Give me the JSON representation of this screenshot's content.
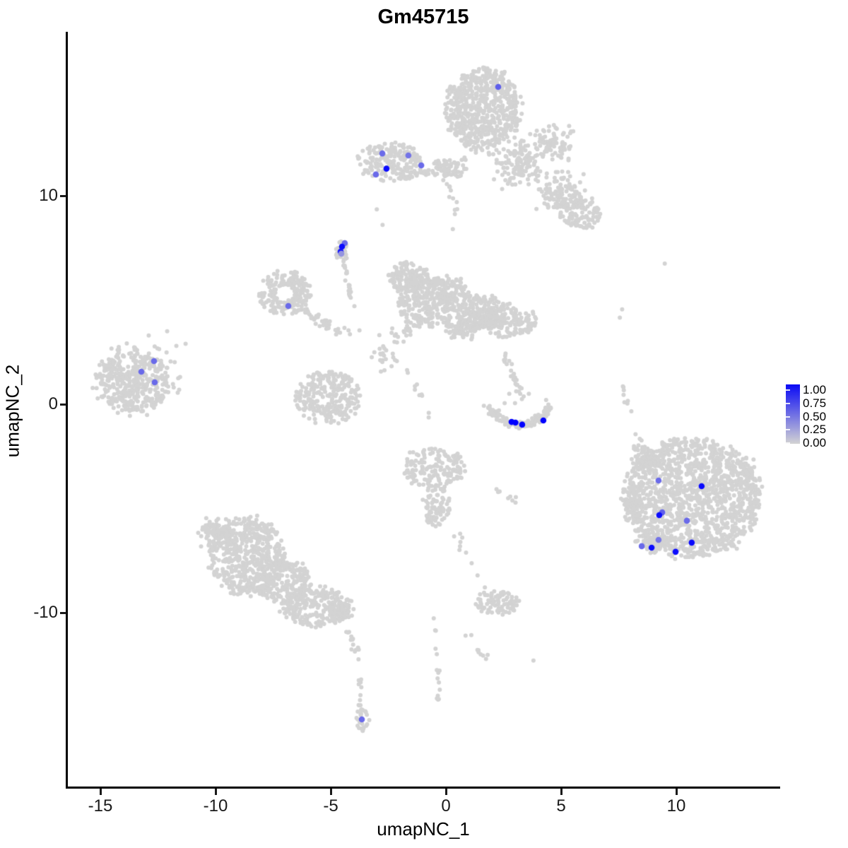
{
  "chart_data": {
    "type": "scatter",
    "title": "Gm45715",
    "xlabel": "umapNC_1",
    "ylabel": "umapNC_2",
    "xlim": [
      -16.4,
      14.4
    ],
    "ylim": [
      -18.4,
      17.9
    ],
    "grid": false,
    "x_ticks": [
      {
        "v": -15,
        "label": "-15"
      },
      {
        "v": -10,
        "label": "-10"
      },
      {
        "v": -5,
        "label": "-5"
      },
      {
        "v": 0,
        "label": "0"
      },
      {
        "v": 5,
        "label": "5"
      },
      {
        "v": 10,
        "label": "10"
      }
    ],
    "y_ticks": [
      {
        "v": 10,
        "label": "10"
      },
      {
        "v": 0,
        "label": "0"
      },
      {
        "v": -10,
        "label": "-10"
      }
    ],
    "legend": {
      "position": "right",
      "labels": [
        "1.00",
        "0.75",
        "0.50",
        "0.25",
        "0.00"
      ],
      "top_color": "#0a0af5",
      "bottom_color": "#d3d3d3"
    },
    "base_point_color": "#d3d3d3",
    "high_point_color": "#0000ff",
    "clusters": [
      {
        "type": "blob",
        "d": "u",
        "x": 1.6,
        "y": 14.1,
        "rx": 1.6,
        "ry": 2.0,
        "n": 650
      },
      {
        "type": "blob",
        "d": "t",
        "x": 0.1,
        "y": 11.4,
        "rx": 0.9,
        "ry": 0.45,
        "n": 45
      },
      {
        "type": "blob",
        "d": "t",
        "x": 3.2,
        "y": 11.6,
        "rx": 1.3,
        "ry": 1.3,
        "n": 130
      },
      {
        "type": "blob",
        "d": "t",
        "x": 4.6,
        "y": 12.5,
        "rx": 1.1,
        "ry": 1.1,
        "n": 80
      },
      {
        "type": "blob",
        "d": "t",
        "x": 5.0,
        "y": 10.1,
        "rx": 1.3,
        "ry": 1.2,
        "n": 120
      },
      {
        "type": "blob",
        "d": "u",
        "x": 5.8,
        "y": 9.2,
        "rx": 0.9,
        "ry": 0.85,
        "n": 110
      },
      {
        "type": "trail",
        "x1": 0.0,
        "y1": 10.9,
        "x2": 0.6,
        "y2": 8.6,
        "n": 12,
        "j": 0.25
      },
      {
        "type": "blob",
        "d": "u",
        "x": -2.4,
        "y": 11.6,
        "rx": 1.45,
        "ry": 0.9,
        "n": 200
      },
      {
        "type": "trail",
        "x1": -1.2,
        "y1": 11.15,
        "x2": 0.7,
        "y2": 11.05,
        "n": 35,
        "j": 0.22
      },
      {
        "type": "blob",
        "d": "u",
        "x": -4.5,
        "y": 7.35,
        "rx": 0.28,
        "ry": 0.55,
        "n": 26
      },
      {
        "type": "trail",
        "x1": -4.05,
        "y1": 4.65,
        "x2": -4.45,
        "y2": 7.0,
        "n": 22,
        "j": 0.12
      },
      {
        "type": "ring",
        "x": -7.0,
        "y": 5.35,
        "r0": 0.4,
        "r1": 1.15,
        "sy": 0.95,
        "n": 210
      },
      {
        "type": "trail",
        "x1": -6.25,
        "y1": 4.6,
        "x2": -4.95,
        "y2": 3.65,
        "n": 30,
        "j": 0.22
      },
      {
        "type": "blob",
        "d": "u",
        "x": -1.6,
        "y": 6.1,
        "rx": 0.85,
        "ry": 0.75,
        "n": 130
      },
      {
        "type": "blob",
        "d": "u",
        "x": -0.9,
        "y": 4.9,
        "rx": 1.25,
        "ry": 1.25,
        "n": 270
      },
      {
        "type": "blob",
        "d": "u",
        "x": 0.2,
        "y": 5.3,
        "rx": 0.8,
        "ry": 0.8,
        "n": 110
      },
      {
        "type": "blob",
        "d": "u",
        "x": 1.5,
        "y": 4.4,
        "rx": 1.05,
        "ry": 0.85,
        "n": 190
      },
      {
        "type": "blob",
        "d": "u",
        "x": 2.5,
        "y": 4.0,
        "rx": 0.7,
        "ry": 0.85,
        "n": 100
      },
      {
        "type": "blob",
        "d": "t",
        "x": 0.6,
        "y": 3.6,
        "rx": 0.9,
        "ry": 0.5,
        "n": 70
      },
      {
        "type": "blob",
        "d": "t",
        "x": 3.6,
        "y": 3.9,
        "rx": 0.5,
        "ry": 0.6,
        "n": 35
      },
      {
        "type": "trail",
        "x1": -5.9,
        "y1": 3.9,
        "x2": -2.9,
        "y2": 3.3,
        "n": 16,
        "j": 0.35
      },
      {
        "type": "blob",
        "d": "t",
        "x": -2.7,
        "y": 2.2,
        "rx": 0.6,
        "ry": 0.7,
        "n": 22
      },
      {
        "type": "blob",
        "d": "t",
        "x": -1.9,
        "y": 3.3,
        "rx": 0.55,
        "ry": 0.55,
        "n": 18
      },
      {
        "type": "trail",
        "x1": -1.6,
        "y1": 1.6,
        "x2": -0.8,
        "y2": -0.6,
        "n": 10,
        "j": 0.3
      },
      {
        "type": "trail",
        "x1": 2.5,
        "y1": 2.4,
        "x2": 3.3,
        "y2": 0.4,
        "n": 26,
        "j": 0.18
      },
      {
        "type": "blob",
        "d": "u",
        "x": -13.5,
        "y": 1.1,
        "rx": 1.5,
        "ry": 1.45,
        "n": 380
      },
      {
        "type": "ring",
        "x": -13.4,
        "y": 1.2,
        "r0": 1.5,
        "r1": 2.0,
        "sy": 0.9,
        "n": 50
      },
      {
        "type": "ring",
        "x": -5.1,
        "y": 0.3,
        "r0": 0.5,
        "r1": 1.45,
        "sy": 0.9,
        "n": 230
      },
      {
        "type": "blob",
        "d": "t",
        "x": -5.1,
        "y": 0.3,
        "rx": 1.0,
        "ry": 0.9,
        "n": 40
      },
      {
        "type": "arc",
        "p0": [
          1.75,
          -0.1
        ],
        "p1": [
          3.2,
          -1.9
        ],
        "p2": [
          4.55,
          -0.15
        ],
        "n": 150,
        "j": 0.2
      },
      {
        "type": "blob",
        "d": "u",
        "x": -0.5,
        "y": -3.1,
        "rx": 1.35,
        "ry": 0.95,
        "n": 170
      },
      {
        "type": "blob",
        "d": "u",
        "x": -0.4,
        "y": -4.9,
        "rx": 0.6,
        "ry": 1.0,
        "n": 85
      },
      {
        "type": "trail",
        "x1": 0.4,
        "y1": -6.2,
        "x2": 1.6,
        "y2": -8.8,
        "n": 10,
        "j": 0.3
      },
      {
        "type": "trail",
        "x1": 2.2,
        "y1": -4.1,
        "x2": 3.3,
        "y2": -4.9,
        "n": 8,
        "j": 0.25
      },
      {
        "type": "blob",
        "d": "t",
        "x": -10.0,
        "y": -6.2,
        "rx": 0.8,
        "ry": 0.9,
        "n": 90
      },
      {
        "type": "blob",
        "d": "u",
        "x": -8.6,
        "y": -7.3,
        "rx": 1.6,
        "ry": 1.9,
        "n": 520
      },
      {
        "type": "blob",
        "d": "u",
        "x": -7.0,
        "y": -8.5,
        "rx": 1.15,
        "ry": 1.05,
        "n": 180
      },
      {
        "type": "blob",
        "d": "u",
        "x": -5.6,
        "y": -9.7,
        "rx": 1.5,
        "ry": 1.0,
        "n": 250
      },
      {
        "type": "blob",
        "d": "t",
        "x": -4.6,
        "y": -9.9,
        "rx": 0.6,
        "ry": 0.55,
        "n": 45
      },
      {
        "type": "trail",
        "x1": -4.35,
        "y1": -10.4,
        "x2": -3.8,
        "y2": -12.2,
        "n": 14,
        "j": 0.18
      },
      {
        "type": "trail",
        "x1": -3.75,
        "y1": -13.2,
        "x2": -3.7,
        "y2": -14.5,
        "n": 10,
        "j": 0.1
      },
      {
        "type": "blob",
        "d": "u",
        "x": -3.62,
        "y": -15.1,
        "rx": 0.32,
        "ry": 0.55,
        "n": 26
      },
      {
        "type": "blob",
        "d": "u",
        "x": 10.7,
        "y": -4.5,
        "rx": 2.85,
        "ry": 2.7,
        "n": 1250
      },
      {
        "type": "ring",
        "x": 10.7,
        "y": -4.5,
        "r0": 2.6,
        "r1": 3.1,
        "sy": 0.95,
        "n": 150
      },
      {
        "type": "blob",
        "d": "t",
        "x": 8.6,
        "y": -2.55,
        "rx": 0.75,
        "ry": 0.7,
        "n": 70
      },
      {
        "type": "blob",
        "d": "t",
        "x": 12.9,
        "y": -3.4,
        "rx": 0.6,
        "ry": 0.8,
        "n": 55
      },
      {
        "type": "blob",
        "d": "t",
        "x": 9.0,
        "y": -6.6,
        "rx": 0.85,
        "ry": 0.6,
        "n": 70
      },
      {
        "type": "blob",
        "d": "t",
        "x": 8.15,
        "y": -4.7,
        "rx": 0.5,
        "ry": 0.95,
        "n": 60
      },
      {
        "type": "trail",
        "x1": 7.65,
        "y1": 0.85,
        "x2": 8.5,
        "y2": -1.8,
        "n": 11,
        "j": 0.15
      },
      {
        "type": "blob",
        "d": "u",
        "x": 2.2,
        "y": -9.5,
        "rx": 0.9,
        "ry": 0.62,
        "n": 90
      },
      {
        "type": "trail",
        "x1": 1.0,
        "y1": -11.0,
        "x2": 1.9,
        "y2": -12.7,
        "n": 9,
        "j": 0.22
      },
      {
        "type": "trail",
        "x1": -0.45,
        "y1": -10.2,
        "x2": -0.3,
        "y2": -14.4,
        "n": 16,
        "j": 0.13
      }
    ],
    "singles": [
      [
        -11.7,
        2.8
      ],
      [
        -11.3,
        2.9
      ],
      [
        -12.1,
        3.5
      ],
      [
        -12.9,
        3.3
      ],
      [
        2.55,
        0.05
      ],
      [
        2.75,
        0.5
      ],
      [
        3.05,
        0.62
      ],
      [
        3.3,
        0.25
      ],
      [
        3.0,
        0.05
      ],
      [
        3.6,
        0.5
      ],
      [
        4.35,
        0.2
      ],
      [
        4.45,
        -0.02
      ],
      [
        2.3,
        -0.3
      ],
      [
        9.5,
        6.75
      ],
      [
        7.65,
        4.55
      ],
      [
        7.55,
        4.15
      ],
      [
        3.8,
        -12.3
      ],
      [
        -3.0,
        9.35
      ],
      [
        -2.75,
        8.6
      ],
      [
        0.3,
        8.4
      ]
    ],
    "feature_points": [
      {
        "x": 2.27,
        "y": 15.22,
        "v": 0.55
      },
      {
        "x": -2.76,
        "y": 12.03,
        "v": 0.5
      },
      {
        "x": -1.63,
        "y": 11.93,
        "v": 0.45
      },
      {
        "x": -2.58,
        "y": 11.3,
        "v": 0.95
      },
      {
        "x": -1.07,
        "y": 11.46,
        "v": 0.5
      },
      {
        "x": -3.04,
        "y": 11.02,
        "v": 0.5
      },
      {
        "x": -4.39,
        "y": 7.73,
        "v": 0.5
      },
      {
        "x": -4.51,
        "y": 7.56,
        "v": 0.95
      },
      {
        "x": -4.57,
        "y": 7.32,
        "v": 0.9
      },
      {
        "x": -4.54,
        "y": 7.22,
        "v": 0.3
      },
      {
        "x": -6.84,
        "y": 4.71,
        "v": 0.5
      },
      {
        "x": -12.67,
        "y": 2.07,
        "v": 0.5
      },
      {
        "x": -13.22,
        "y": 1.56,
        "v": 0.5
      },
      {
        "x": -12.64,
        "y": 1.05,
        "v": 0.5
      },
      {
        "x": 2.85,
        "y": -0.85,
        "v": 1.0
      },
      {
        "x": 3.02,
        "y": -0.88,
        "v": 1.0
      },
      {
        "x": 3.31,
        "y": -0.98,
        "v": 1.0
      },
      {
        "x": 4.23,
        "y": -0.78,
        "v": 1.0
      },
      {
        "x": 9.23,
        "y": -3.66,
        "v": 0.5
      },
      {
        "x": 11.1,
        "y": -3.93,
        "v": 0.95
      },
      {
        "x": 9.39,
        "y": -5.19,
        "v": 0.55
      },
      {
        "x": 9.26,
        "y": -5.32,
        "v": 0.95
      },
      {
        "x": 10.46,
        "y": -5.59,
        "v": 0.5
      },
      {
        "x": 9.23,
        "y": -6.51,
        "v": 0.45
      },
      {
        "x": 8.5,
        "y": -6.81,
        "v": 0.5
      },
      {
        "x": 8.93,
        "y": -6.88,
        "v": 0.95
      },
      {
        "x": 10.67,
        "y": -6.64,
        "v": 0.95
      },
      {
        "x": 9.97,
        "y": -7.08,
        "v": 0.95
      },
      {
        "x": -3.65,
        "y": -15.12,
        "v": 0.5
      }
    ]
  }
}
